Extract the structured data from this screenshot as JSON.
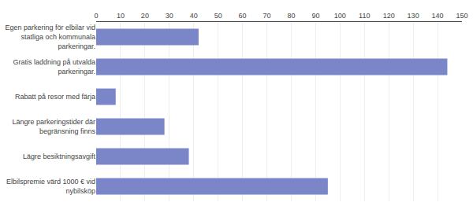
{
  "chart_data": {
    "type": "bar",
    "orientation": "horizontal",
    "categories": [
      "Egen parkering för elbilar vid\nstatliga och kommunala\nparkeringar.",
      "Gratis laddning på utvalda\nparkeringar.",
      "Rabatt på resor med färja",
      "Längre parkeringstider där\nbegränsning finns",
      "Lägre besiktningsavgift",
      "Elbilspremie värd 1000 € vid\nnybilsköp"
    ],
    "values": [
      42,
      144,
      8,
      28,
      38,
      95
    ],
    "color": "#7b86c8",
    "xlim": [
      0,
      150
    ],
    "xticks": [
      0,
      10,
      20,
      30,
      40,
      50,
      60,
      70,
      80,
      90,
      100,
      110,
      120,
      130,
      140,
      150
    ],
    "grid": true
  }
}
